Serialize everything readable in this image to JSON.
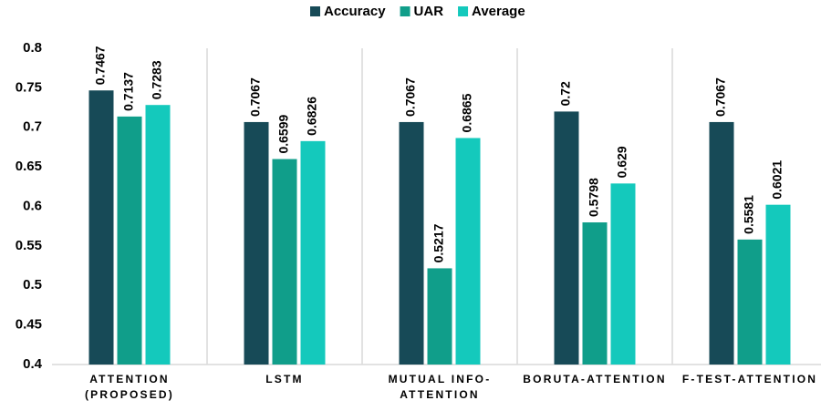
{
  "chart_data": {
    "type": "bar",
    "categories": [
      "ATTENTION (PROPOSED)",
      "LSTM",
      "MUTUAL INFO-ATTENTION",
      "BORUTA-ATTENTION",
      "F-TEST-ATTENTION"
    ],
    "series": [
      {
        "name": "Accuracy",
        "color": "#174a57",
        "values": [
          0.7467,
          0.7067,
          0.7067,
          0.72,
          0.7067
        ]
      },
      {
        "name": "UAR",
        "color": "#109e8a",
        "values": [
          0.7137,
          0.6599,
          0.5217,
          0.5798,
          0.5581
        ]
      },
      {
        "name": "Average",
        "color": "#14c9bc",
        "values": [
          0.7283,
          0.6826,
          0.6865,
          0.629,
          0.6021
        ]
      }
    ],
    "ylim": [
      0.4,
      0.8
    ],
    "yticks": [
      0.4,
      0.45,
      0.5,
      0.55,
      0.6,
      0.65,
      0.7,
      0.75,
      0.8
    ],
    "grid": false,
    "legend": "top"
  }
}
